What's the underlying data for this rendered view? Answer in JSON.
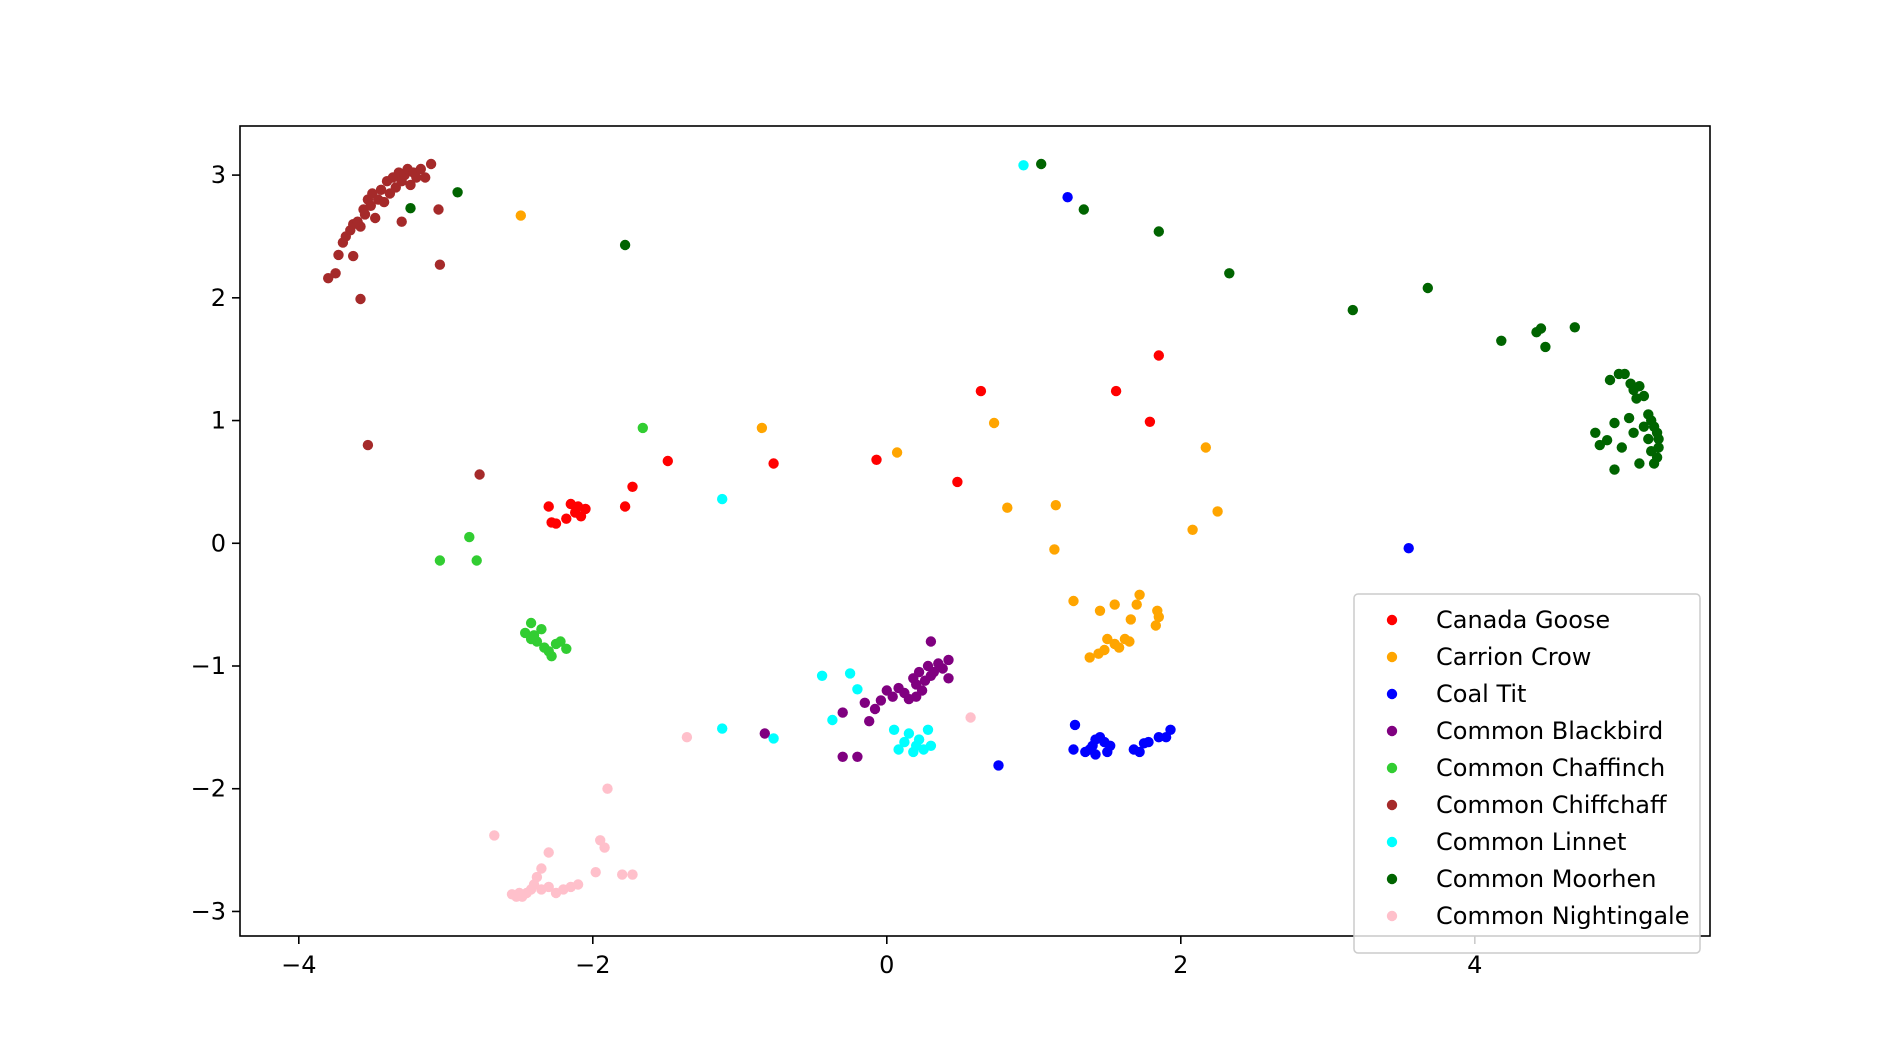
{
  "chart_data": {
    "type": "scatter",
    "title": "",
    "xlabel": "",
    "ylabel": "",
    "xlim": [
      -4.4,
      5.6
    ],
    "ylim": [
      -3.2,
      3.4
    ],
    "x_ticks": [
      -4,
      -2,
      0,
      2,
      4
    ],
    "y_ticks": [
      -3,
      -2,
      -1,
      0,
      1,
      2,
      3
    ],
    "x_tick_labels": [
      "−4",
      "−2",
      "0",
      "2",
      "4"
    ],
    "y_tick_labels": [
      "−3",
      "−2",
      "−1",
      "0",
      "1",
      "2",
      "3"
    ],
    "grid": false,
    "legend_position": "lower-right",
    "series": [
      {
        "name": "Canada Goose",
        "color": "#ff0000",
        "points": [
          [
            -2.3,
            0.3
          ],
          [
            -2.28,
            0.17
          ],
          [
            -2.25,
            0.16
          ],
          [
            -2.15,
            0.32
          ],
          [
            -2.12,
            0.25
          ],
          [
            -2.1,
            0.3
          ],
          [
            -2.08,
            0.22
          ],
          [
            -2.05,
            0.28
          ],
          [
            -2.18,
            0.2
          ],
          [
            -1.78,
            0.3
          ],
          [
            -1.73,
            0.46
          ],
          [
            -1.49,
            0.67
          ],
          [
            -0.77,
            0.65
          ],
          [
            -0.07,
            0.68
          ],
          [
            0.48,
            0.5
          ],
          [
            0.64,
            1.24
          ],
          [
            1.56,
            1.24
          ],
          [
            1.79,
            0.99
          ],
          [
            1.85,
            1.53
          ]
        ]
      },
      {
        "name": "Carrion Crow",
        "color": "#ffa500",
        "points": [
          [
            -2.49,
            2.67
          ],
          [
            -0.85,
            0.94
          ],
          [
            0.07,
            0.74
          ],
          [
            0.73,
            0.98
          ],
          [
            0.82,
            0.29
          ],
          [
            1.15,
            0.31
          ],
          [
            1.14,
            -0.05
          ],
          [
            1.27,
            -0.47
          ],
          [
            1.38,
            -0.93
          ],
          [
            1.44,
            -0.9
          ],
          [
            1.48,
            -0.87
          ],
          [
            1.5,
            -0.78
          ],
          [
            1.55,
            -0.82
          ],
          [
            1.58,
            -0.85
          ],
          [
            1.62,
            -0.78
          ],
          [
            1.65,
            -0.8
          ],
          [
            1.66,
            -0.62
          ],
          [
            1.7,
            -0.5
          ],
          [
            1.72,
            -0.42
          ],
          [
            1.55,
            -0.5
          ],
          [
            1.45,
            -0.55
          ],
          [
            1.83,
            -0.67
          ],
          [
            1.84,
            -0.55
          ],
          [
            1.85,
            -0.6
          ],
          [
            2.08,
            0.11
          ],
          [
            2.17,
            0.78
          ],
          [
            2.25,
            0.26
          ]
        ]
      },
      {
        "name": "Coal Tit",
        "color": "#0000ff",
        "points": [
          [
            1.23,
            2.82
          ],
          [
            0.76,
            -1.81
          ],
          [
            1.28,
            -1.48
          ],
          [
            1.27,
            -1.68
          ],
          [
            1.35,
            -1.7
          ],
          [
            1.38,
            -1.68
          ],
          [
            1.4,
            -1.65
          ],
          [
            1.42,
            -1.72
          ],
          [
            1.45,
            -1.58
          ],
          [
            1.48,
            -1.62
          ],
          [
            1.5,
            -1.7
          ],
          [
            1.52,
            -1.65
          ],
          [
            1.42,
            -1.6
          ],
          [
            1.68,
            -1.68
          ],
          [
            1.72,
            -1.7
          ],
          [
            1.75,
            -1.63
          ],
          [
            1.78,
            -1.62
          ],
          [
            1.85,
            -1.58
          ],
          [
            1.9,
            -1.58
          ],
          [
            1.93,
            -1.52
          ],
          [
            3.55,
            -0.04
          ]
        ]
      },
      {
        "name": "Common Blackbird",
        "color": "#800080",
        "points": [
          [
            -0.83,
            -1.55
          ],
          [
            -0.3,
            -1.38
          ],
          [
            -0.3,
            -1.74
          ],
          [
            -0.2,
            -1.74
          ],
          [
            -0.15,
            -1.3
          ],
          [
            -0.12,
            -1.45
          ],
          [
            -0.08,
            -1.35
          ],
          [
            -0.04,
            -1.28
          ],
          [
            0.0,
            -1.2
          ],
          [
            0.04,
            -1.25
          ],
          [
            0.08,
            -1.18
          ],
          [
            0.12,
            -1.22
          ],
          [
            0.15,
            -1.27
          ],
          [
            0.18,
            -1.1
          ],
          [
            0.2,
            -1.15
          ],
          [
            0.22,
            -1.05
          ],
          [
            0.24,
            -1.2
          ],
          [
            0.26,
            -1.12
          ],
          [
            0.28,
            -1.0
          ],
          [
            0.3,
            -1.08
          ],
          [
            0.3,
            -0.8
          ],
          [
            0.32,
            -1.05
          ],
          [
            0.35,
            -0.98
          ],
          [
            0.38,
            -1.02
          ],
          [
            0.42,
            -0.95
          ],
          [
            0.42,
            -1.1
          ],
          [
            0.2,
            -1.25
          ]
        ]
      },
      {
        "name": "Common Chaffinch",
        "color": "#32cd32",
        "points": [
          [
            -1.66,
            0.94
          ],
          [
            -3.04,
            -0.14
          ],
          [
            -2.84,
            0.05
          ],
          [
            -2.79,
            -0.14
          ],
          [
            -2.46,
            -0.73
          ],
          [
            -2.42,
            -0.65
          ],
          [
            -2.4,
            -0.75
          ],
          [
            -2.38,
            -0.8
          ],
          [
            -2.35,
            -0.7
          ],
          [
            -2.33,
            -0.85
          ],
          [
            -2.3,
            -0.88
          ],
          [
            -2.28,
            -0.92
          ],
          [
            -2.25,
            -0.82
          ],
          [
            -2.22,
            -0.8
          ],
          [
            -2.18,
            -0.86
          ],
          [
            -2.42,
            -0.78
          ]
        ]
      },
      {
        "name": "Common Chiffchaff",
        "color": "#a52a2a",
        "points": [
          [
            -3.8,
            2.16
          ],
          [
            -3.75,
            2.2
          ],
          [
            -3.73,
            2.35
          ],
          [
            -3.7,
            2.45
          ],
          [
            -3.68,
            2.5
          ],
          [
            -3.65,
            2.55
          ],
          [
            -3.63,
            2.6
          ],
          [
            -3.6,
            2.62
          ],
          [
            -3.58,
            2.58
          ],
          [
            -3.56,
            2.72
          ],
          [
            -3.55,
            2.68
          ],
          [
            -3.53,
            2.8
          ],
          [
            -3.51,
            2.75
          ],
          [
            -3.5,
            2.85
          ],
          [
            -3.48,
            2.65
          ],
          [
            -3.46,
            2.8
          ],
          [
            -3.44,
            2.88
          ],
          [
            -3.42,
            2.78
          ],
          [
            -3.4,
            2.95
          ],
          [
            -3.38,
            2.85
          ],
          [
            -3.36,
            2.98
          ],
          [
            -3.34,
            2.9
          ],
          [
            -3.32,
            3.02
          ],
          [
            -3.3,
            2.95
          ],
          [
            -3.28,
            3.0
          ],
          [
            -3.26,
            3.05
          ],
          [
            -3.24,
            2.92
          ],
          [
            -3.22,
            3.02
          ],
          [
            -3.2,
            2.98
          ],
          [
            -3.17,
            3.05
          ],
          [
            -3.14,
            2.98
          ],
          [
            -3.1,
            3.09
          ],
          [
            -3.3,
            2.62
          ],
          [
            -3.05,
            2.72
          ],
          [
            -3.04,
            2.27
          ],
          [
            -3.63,
            2.34
          ],
          [
            -3.58,
            1.99
          ],
          [
            -3.53,
            0.8
          ],
          [
            -2.77,
            0.56
          ]
        ]
      },
      {
        "name": "Common Linnet",
        "color": "#00ffff",
        "points": [
          [
            0.93,
            3.08
          ],
          [
            -1.12,
            0.36
          ],
          [
            -1.12,
            -1.51
          ],
          [
            -0.77,
            -1.59
          ],
          [
            -0.44,
            -1.08
          ],
          [
            -0.37,
            -1.44
          ],
          [
            -0.25,
            -1.06
          ],
          [
            -0.2,
            -1.19
          ],
          [
            0.05,
            -1.52
          ],
          [
            0.08,
            -1.68
          ],
          [
            0.12,
            -1.62
          ],
          [
            0.15,
            -1.55
          ],
          [
            0.18,
            -1.7
          ],
          [
            0.2,
            -1.65
          ],
          [
            0.22,
            -1.6
          ],
          [
            0.25,
            -1.68
          ],
          [
            0.28,
            -1.52
          ],
          [
            0.3,
            -1.65
          ]
        ]
      },
      {
        "name": "Common Moorhen",
        "color": "#006400",
        "points": [
          [
            1.05,
            3.09
          ],
          [
            1.34,
            2.72
          ],
          [
            1.85,
            2.54
          ],
          [
            2.33,
            2.2
          ],
          [
            -3.24,
            2.73
          ],
          [
            -2.92,
            2.86
          ],
          [
            -1.78,
            2.43
          ],
          [
            3.17,
            1.9
          ],
          [
            3.68,
            2.08
          ],
          [
            4.18,
            1.65
          ],
          [
            4.42,
            1.72
          ],
          [
            4.45,
            1.75
          ],
          [
            4.48,
            1.6
          ],
          [
            4.68,
            1.76
          ],
          [
            4.98,
            1.38
          ],
          [
            5.02,
            1.38
          ],
          [
            5.06,
            1.3
          ],
          [
            4.92,
            1.33
          ],
          [
            5.08,
            1.25
          ],
          [
            5.12,
            1.28
          ],
          [
            5.15,
            1.2
          ],
          [
            5.18,
            1.05
          ],
          [
            5.2,
            1.0
          ],
          [
            5.22,
            0.95
          ],
          [
            5.24,
            0.9
          ],
          [
            5.25,
            0.85
          ],
          [
            5.25,
            0.78
          ],
          [
            5.24,
            0.7
          ],
          [
            5.22,
            0.65
          ],
          [
            5.2,
            0.75
          ],
          [
            5.18,
            0.85
          ],
          [
            5.15,
            0.95
          ],
          [
            5.12,
            0.65
          ],
          [
            5.08,
            0.9
          ],
          [
            5.05,
            1.02
          ],
          [
            5.0,
            0.78
          ],
          [
            4.95,
            0.98
          ],
          [
            4.9,
            0.84
          ],
          [
            4.85,
            0.8
          ],
          [
            4.95,
            0.6
          ],
          [
            4.82,
            0.9
          ],
          [
            5.1,
            1.18
          ]
        ]
      },
      {
        "name": "Common Nightingale",
        "color": "#ffc0cb",
        "points": [
          [
            -2.67,
            -2.38
          ],
          [
            -1.36,
            -1.58
          ],
          [
            -1.9,
            -2.0
          ],
          [
            -1.92,
            -2.48
          ],
          [
            -1.95,
            -2.42
          ],
          [
            -1.8,
            -2.7
          ],
          [
            -1.73,
            -2.7
          ],
          [
            -1.98,
            -2.68
          ],
          [
            -2.3,
            -2.52
          ],
          [
            -2.35,
            -2.65
          ],
          [
            -2.38,
            -2.72
          ],
          [
            -2.4,
            -2.78
          ],
          [
            -2.42,
            -2.82
          ],
          [
            -2.45,
            -2.85
          ],
          [
            -2.48,
            -2.88
          ],
          [
            -2.5,
            -2.85
          ],
          [
            -2.52,
            -2.88
          ],
          [
            -2.55,
            -2.86
          ],
          [
            -2.35,
            -2.82
          ],
          [
            -2.3,
            -2.8
          ],
          [
            -2.25,
            -2.85
          ],
          [
            -2.2,
            -2.82
          ],
          [
            -2.15,
            -2.8
          ],
          [
            -2.1,
            -2.78
          ],
          [
            0.57,
            -1.42
          ]
        ]
      }
    ]
  }
}
